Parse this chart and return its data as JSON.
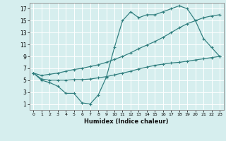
{
  "xlabel": "Humidex (Indice chaleur)",
  "bg_color": "#d6eeee",
  "line_color": "#2e7d7d",
  "grid_color": "#b8d8d8",
  "xlim": [
    -0.5,
    23.5
  ],
  "ylim": [
    0,
    18
  ],
  "xticks": [
    0,
    1,
    2,
    3,
    4,
    5,
    6,
    7,
    8,
    9,
    10,
    11,
    12,
    13,
    14,
    15,
    16,
    17,
    18,
    19,
    20,
    21,
    22,
    23
  ],
  "yticks": [
    1,
    3,
    5,
    7,
    9,
    11,
    13,
    15,
    17
  ],
  "line1_x": [
    0,
    1,
    2,
    3,
    4,
    5,
    6,
    7,
    8,
    9,
    10,
    11,
    12,
    13,
    14,
    15,
    16,
    17,
    18,
    19,
    20,
    21,
    22,
    23
  ],
  "line1_y": [
    6.2,
    5.0,
    4.6,
    4.0,
    2.8,
    2.8,
    1.2,
    1.0,
    2.5,
    5.5,
    10.5,
    15.0,
    16.5,
    15.5,
    16.0,
    16.0,
    16.5,
    17.0,
    17.5,
    17.0,
    15.0,
    12.0,
    10.5,
    9.0
  ],
  "line2_x": [
    0,
    1,
    2,
    3,
    4,
    5,
    6,
    7,
    8,
    9,
    10,
    11,
    12,
    13,
    14,
    15,
    16,
    17,
    18,
    19,
    20,
    21,
    22,
    23
  ],
  "line2_y": [
    6.2,
    5.2,
    5.0,
    5.0,
    5.0,
    5.1,
    5.1,
    5.2,
    5.4,
    5.6,
    5.9,
    6.2,
    6.5,
    6.9,
    7.2,
    7.5,
    7.7,
    7.9,
    8.0,
    8.2,
    8.4,
    8.6,
    8.8,
    9.0
  ],
  "line3_x": [
    0,
    1,
    2,
    3,
    4,
    5,
    6,
    7,
    8,
    9,
    10,
    11,
    12,
    13,
    14,
    15,
    16,
    17,
    18,
    19,
    20,
    21,
    22,
    23
  ],
  "line3_y": [
    6.2,
    5.8,
    6.0,
    6.2,
    6.5,
    6.8,
    7.0,
    7.3,
    7.6,
    8.0,
    8.5,
    9.0,
    9.6,
    10.3,
    10.9,
    11.5,
    12.2,
    13.0,
    13.8,
    14.5,
    15.0,
    15.5,
    15.8,
    16.0
  ]
}
